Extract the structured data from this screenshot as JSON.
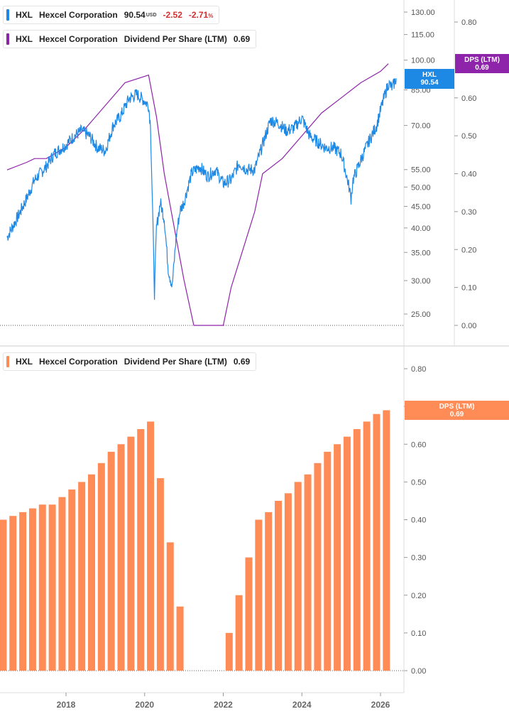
{
  "colors": {
    "price": "#1e88e5",
    "dps_line": "#8e24aa",
    "dps_bar": "#ff8c57",
    "negative": "#d32f2f",
    "axis_text": "#555555",
    "grid": "#dddddd"
  },
  "top_legend_price": {
    "ticker": "HXL",
    "name": "Hexcel Corporation",
    "value": "90.54",
    "currency": "USD",
    "change": "-2.52",
    "change_pct": "-2.71",
    "pct_sign": "%"
  },
  "top_legend_dps": {
    "ticker": "HXL",
    "name": "Hexcel Corporation",
    "metric": "Dividend Per Share (LTM)",
    "value": "0.69"
  },
  "bottom_legend_dps": {
    "ticker": "HXL",
    "name": "Hexcel Corporation",
    "metric": "Dividend Per Share (LTM)",
    "value": "0.69"
  },
  "tags": {
    "price_tag_ticker": "HXL",
    "price_tag_value": "90.54",
    "dps_tag_label": "DPS (LTM)",
    "dps_tag_value": "0.69",
    "bottom_dps_tag_label": "DPS (LTM)",
    "bottom_dps_tag_value": "0.69"
  },
  "chart_data": [
    {
      "type": "line",
      "series_name": "HXL price (USD)",
      "scale": "log",
      "ylim": [
        21.5,
        140
      ],
      "price_ticks": [
        "130.00",
        "115.00",
        "100.00",
        "85.00",
        "70.00",
        "55.00",
        "50.00",
        "45.00",
        "40.00",
        "35.00",
        "30.00",
        "25.00"
      ],
      "x": [
        2016.5,
        2016.8,
        2017.0,
        2017.2,
        2017.5,
        2017.7,
        2018.0,
        2018.2,
        2018.4,
        2018.6,
        2018.8,
        2019.0,
        2019.2,
        2019.4,
        2019.6,
        2019.8,
        2020.0,
        2020.1,
        2020.15,
        2020.2,
        2020.25,
        2020.3,
        2020.4,
        2020.5,
        2020.6,
        2020.7,
        2020.8,
        2020.9,
        2021.0,
        2021.1,
        2021.2,
        2021.4,
        2021.6,
        2021.8,
        2022.0,
        2022.2,
        2022.4,
        2022.6,
        2022.8,
        2023.0,
        2023.2,
        2023.4,
        2023.6,
        2023.8,
        2024.0,
        2024.2,
        2024.4,
        2024.6,
        2024.8,
        2025.0,
        2025.1,
        2025.2,
        2025.25,
        2025.3,
        2025.5,
        2025.7,
        2025.9,
        2026.0,
        2026.1,
        2026.2,
        2026.3,
        2026.4
      ],
      "values": [
        38,
        43,
        47,
        52,
        56,
        60,
        63,
        66,
        68,
        66,
        62,
        61,
        70,
        74,
        81,
        83,
        80,
        78,
        70,
        45,
        28,
        40,
        46,
        42,
        32,
        29,
        38,
        44,
        46,
        50,
        54,
        56,
        53,
        55,
        51,
        52,
        57,
        55,
        55,
        63,
        72,
        71,
        68,
        69,
        73,
        66,
        64,
        62,
        62,
        60,
        55,
        50,
        47,
        52,
        58,
        64,
        70,
        76,
        82,
        88,
        86,
        90.54
      ]
    },
    {
      "type": "line",
      "series_name": "Dividend Per Share (LTM)",
      "x": [
        2016.5,
        2017.0,
        2017.2,
        2017.5,
        2018.0,
        2018.5,
        2019.0,
        2019.5,
        2020.1,
        2020.3,
        2020.5,
        2021.0,
        2021.25,
        2021.5,
        2021.75,
        2022.0,
        2022.2,
        2022.5,
        2022.8,
        2023.0,
        2023.5,
        2024.0,
        2024.5,
        2025.0,
        2025.5,
        2026.0,
        2026.2
      ],
      "values": [
        0.41,
        0.43,
        0.44,
        0.44,
        0.47,
        0.52,
        0.58,
        0.64,
        0.66,
        0.55,
        0.4,
        0.12,
        0.0,
        0.0,
        0.0,
        0.0,
        0.1,
        0.2,
        0.3,
        0.4,
        0.44,
        0.5,
        0.56,
        0.6,
        0.64,
        0.67,
        0.69
      ],
      "ylim": [
        0,
        0.8
      ]
    },
    {
      "type": "bar",
      "series_name": "Dividend Per Share (LTM)",
      "x": [
        2016.4,
        2016.65,
        2016.9,
        2017.15,
        2017.4,
        2017.65,
        2017.9,
        2018.15,
        2018.4,
        2018.65,
        2018.9,
        2019.15,
        2019.4,
        2019.65,
        2019.9,
        2020.15,
        2020.4,
        2020.65,
        2020.9,
        2021.15,
        2021.4,
        2021.65,
        2021.9,
        2022.15,
        2022.4,
        2022.65,
        2022.9,
        2023.15,
        2023.4,
        2023.65,
        2023.9,
        2024.15,
        2024.4,
        2024.65,
        2024.9,
        2025.15,
        2025.4,
        2025.65,
        2025.9,
        2026.15
      ],
      "values": [
        0.4,
        0.41,
        0.42,
        0.43,
        0.44,
        0.44,
        0.46,
        0.48,
        0.5,
        0.52,
        0.55,
        0.58,
        0.6,
        0.62,
        0.64,
        0.66,
        0.51,
        0.34,
        0.17,
        0,
        0,
        0,
        0,
        0.1,
        0.2,
        0.3,
        0.4,
        0.42,
        0.45,
        0.47,
        0.5,
        0.52,
        0.55,
        0.58,
        0.6,
        0.62,
        0.64,
        0.66,
        0.68,
        0.69
      ],
      "ylim": [
        0,
        0.8
      ],
      "dps_ticks": [
        "0.80",
        "0.70",
        "0.60",
        "0.50",
        "0.40",
        "0.30",
        "0.20",
        "0.10",
        "0.00"
      ]
    }
  ],
  "x_axis": {
    "tick_labels": [
      "2018",
      "2020",
      "2022",
      "2024",
      "2026"
    ],
    "tick_years": [
      2018,
      2020,
      2022,
      2024,
      2026
    ]
  },
  "top_dps_ticks": [
    "0.80",
    "0.70",
    "0.60",
    "0.50",
    "0.40",
    "0.30",
    "0.20",
    "0.10",
    "0.00"
  ]
}
